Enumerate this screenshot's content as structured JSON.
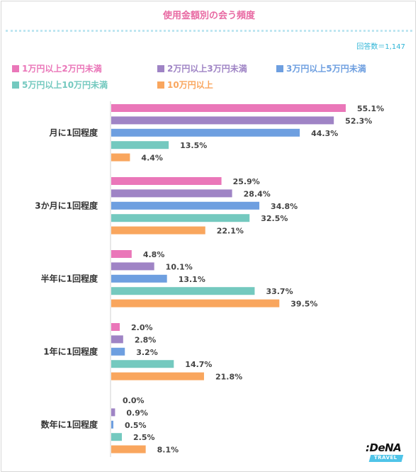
{
  "header": {
    "title": "使用金額別の会う頻度",
    "respondents": "回答数＝1,147"
  },
  "logo": {
    "brand": ":DeNA",
    "sub": "TRAVEL"
  },
  "chart_data": {
    "type": "bar",
    "orientation": "horizontal",
    "title": "使用金額別の会う頻度",
    "categories": [
      "月に1回程度",
      "3か月に1回程度",
      "半年に1回程度",
      "1年に1回程度",
      "数年に1回程度"
    ],
    "series": [
      {
        "name": "1万円以上2万円未満",
        "color": "#ea77b9",
        "values": [
          55.1,
          25.9,
          4.8,
          2.0,
          0.0
        ]
      },
      {
        "name": "2万円以上3万円未満",
        "color": "#9f84c5",
        "values": [
          52.3,
          28.4,
          10.1,
          2.8,
          0.9
        ]
      },
      {
        "name": "3万円以上5万円未満",
        "color": "#6e9fe0",
        "values": [
          44.3,
          34.8,
          13.1,
          3.2,
          0.5
        ]
      },
      {
        "name": "5万円以上10万円未満",
        "color": "#74c9bf",
        "values": [
          13.5,
          32.5,
          33.7,
          14.7,
          2.5
        ]
      },
      {
        "name": "10万円以上",
        "color": "#f9a65e",
        "values": [
          4.4,
          22.1,
          39.5,
          21.8,
          8.1
        ]
      }
    ],
    "value_suffix": "%",
    "xlim": [
      0,
      60
    ],
    "legend_position": "top",
    "grid": false
  }
}
